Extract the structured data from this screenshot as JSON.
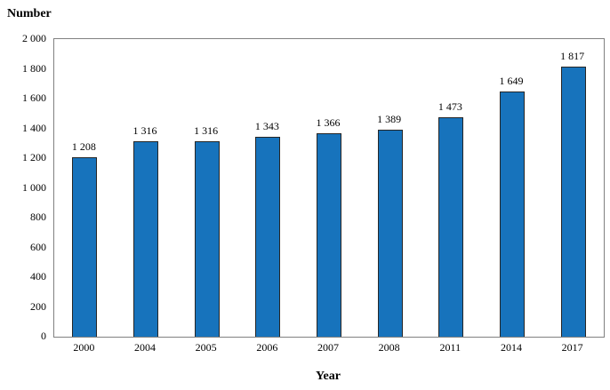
{
  "chart": {
    "y_axis_title": "Number",
    "x_axis_title": "Year"
  },
  "chart_data": {
    "type": "bar",
    "title": "",
    "xlabel": "Year",
    "ylabel": "Number",
    "categories": [
      "2000",
      "2004",
      "2005",
      "2006",
      "2007",
      "2008",
      "2011",
      "2014",
      "2017"
    ],
    "values": [
      1208,
      1316,
      1316,
      1343,
      1366,
      1389,
      1473,
      1649,
      1817
    ],
    "value_labels": [
      "1 208",
      "1 316",
      "1 316",
      "1 343",
      "1 366",
      "1 389",
      "1 473",
      "1 649",
      "1 817"
    ],
    "ylim": [
      0,
      2000
    ],
    "ytick_step": 200,
    "ytick_labels": [
      "0",
      "200",
      "400",
      "600",
      "800",
      "1 000",
      "1 200",
      "1 400",
      "1 600",
      "1 800",
      "2 000"
    ],
    "grid": false,
    "legend": false,
    "bar_color": "#1773BC",
    "bar_border_color": "#262626",
    "plot_border_color": "#808080"
  }
}
